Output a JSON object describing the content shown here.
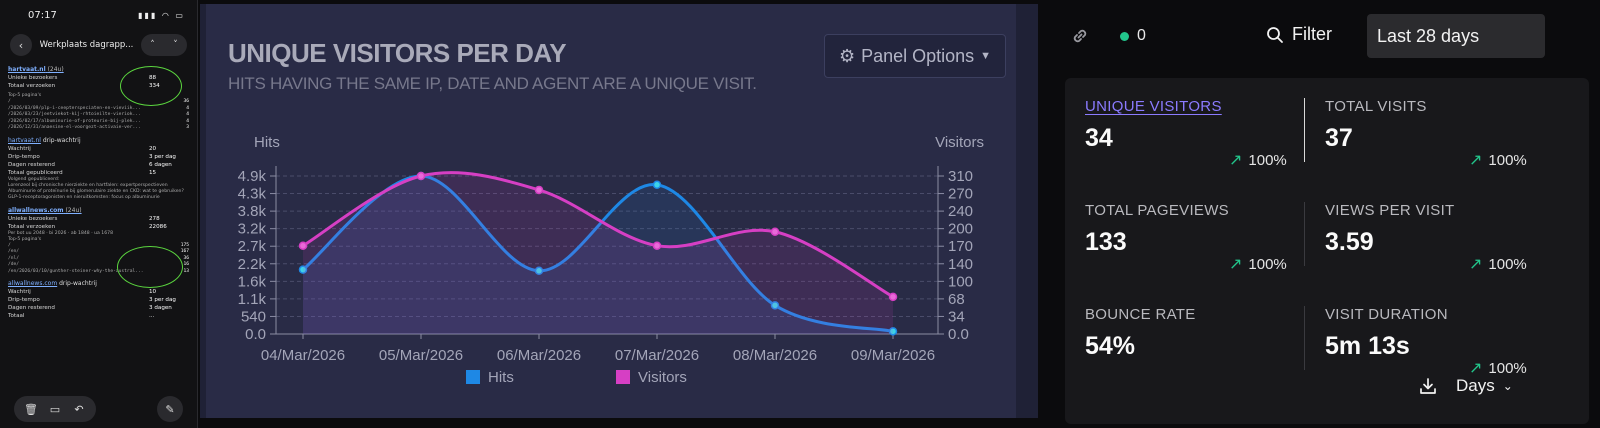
{
  "phone": {
    "time": "07:17",
    "status_icons": "▮▮▮ ◠ ▭",
    "title": "Werkplaats dagrapp...",
    "site1": {
      "name": "hartvaat.nl",
      "period": "(24u)",
      "rows": [
        {
          "label": "Unieke bezoekers",
          "value": "88"
        },
        {
          "label": "Totaal verzoeken",
          "value": "334"
        }
      ],
      "pages_head": "Top-5 pagina's",
      "pages": [
        {
          "path": "/",
          "count": "36"
        },
        {
          "path": "/2026/03/09/plp-i-ceepterspeciaten-en-vieviik...",
          "count": "4"
        },
        {
          "path": "/2026/03/23/jeetviekot-kij-rhtoieilte-vieriok...",
          "count": "4"
        },
        {
          "path": "/2026/02/17/albuminurie-of-proteurie-bij-plek...",
          "count": "4"
        },
        {
          "path": "/2026/12/31/anaesine-el-voorgezt-activaie-ver...",
          "count": "3"
        }
      ]
    },
    "drip1": {
      "name": "hartvaat.nl",
      "suffix": "drip-wachtrij",
      "rows": [
        {
          "label": "Wachtrij",
          "value": "20"
        },
        {
          "label": "Drip-tempo",
          "value": "3 per dag"
        },
        {
          "label": "Dagen resterend",
          "value": "6 dagen"
        },
        {
          "label": "Totaal gepubliceerd",
          "value": "15"
        }
      ],
      "notes_head": "Volgend gepubliceerd:",
      "notes": [
        "Lorenzeol bij chronische nierziekte en hartfalen: expertperspectieven",
        "Albuminurie of proteïnurie bij glomerulaire ziekte en CKD: wat te gebruiken?",
        "GLP-1-receptoragonisten en nieruitkomsten: focus op albuminurie"
      ]
    },
    "site2": {
      "name": "allwallnews.com",
      "period": "(24u)",
      "rows": [
        {
          "label": "Unieke bezoekers",
          "value": "278"
        },
        {
          "label": "Totaal verzoeken",
          "value": "22086"
        }
      ],
      "meta": "Per bot uu 2048 · bi 2026 · ab 1848 · ua 1678",
      "pages_head": "Top-5 pagina's",
      "pages": [
        {
          "path": "/",
          "count": "175"
        },
        {
          "path": "/en/",
          "count": "167"
        },
        {
          "path": "/nl/",
          "count": "36"
        },
        {
          "path": "/de/",
          "count": "16"
        },
        {
          "path": "/en/2026/03/10/gunther-steiner-why-the-austral...",
          "count": "13"
        }
      ]
    },
    "drip2": {
      "name": "allwallnews.com",
      "suffix": "drip-wachtrij",
      "rows": [
        {
          "label": "Wachtrij",
          "value": "10"
        },
        {
          "label": "Drip-tempo",
          "value": "3 per dag"
        },
        {
          "label": "Dagen resterend",
          "value": "3 dagen"
        },
        {
          "label": "Totaal",
          "value": "..."
        }
      ]
    }
  },
  "chart_panel": {
    "title": "UNIQUE VISITORS PER DAY",
    "subtitle": "HITS HAVING THE SAME IP, DATE AND AGENT ARE A UNIQUE VISIT.",
    "options_label": "Panel Options"
  },
  "chart_data": {
    "type": "line",
    "title": "UNIQUE VISITORS PER DAY",
    "subtitle": "HITS HAVING THE SAME IP, DATE AND AGENT ARE A UNIQUE VISIT.",
    "x": [
      "04/Mar/2026",
      "05/Mar/2026",
      "06/Mar/2026",
      "07/Mar/2026",
      "08/Mar/2026",
      "09/Mar/2026"
    ],
    "left_axis": {
      "label": "Hits",
      "ticks": [
        "0.0",
        "540",
        "1.1k",
        "1.6k",
        "2.2k",
        "2.7k",
        "3.2k",
        "3.8k",
        "4.3k",
        "4.9k"
      ],
      "ylim": [
        0,
        5400
      ]
    },
    "right_axis": {
      "label": "Visitors",
      "ticks": [
        "0.0",
        "34",
        "68",
        "100",
        "140",
        "170",
        "200",
        "240",
        "270",
        "310"
      ],
      "ylim": [
        0,
        340
      ]
    },
    "series": [
      {
        "name": "Hits",
        "axis": "left",
        "color": "#1e88e5",
        "values": [
          2200,
          5400,
          2160,
          5100,
          980,
          90
        ]
      },
      {
        "name": "Visitors",
        "axis": "right",
        "color": "#d63fc4",
        "values": [
          190,
          340,
          310,
          190,
          220,
          80
        ]
      }
    ],
    "legend": "bottom",
    "grid": true
  },
  "stats": {
    "live_count": "0",
    "filter_label": "Filter",
    "range_label": "Last 28 days",
    "items": [
      {
        "label": "UNIQUE VISITORS",
        "value": "34",
        "change": "100%"
      },
      {
        "label": "TOTAL VISITS",
        "value": "37",
        "change": "100%"
      },
      {
        "label": "TOTAL PAGEVIEWS",
        "value": "133",
        "change": "100%"
      },
      {
        "label": "VIEWS PER VISIT",
        "value": "3.59",
        "change": "100%"
      },
      {
        "label": "BOUNCE RATE",
        "value": "54%"
      },
      {
        "label": "VISIT DURATION",
        "value": "5m 13s",
        "change": "100%"
      }
    ],
    "interval_label": "Days"
  },
  "colors": {
    "accent": "#8b7bff",
    "positive": "#22c58b",
    "hits": "#1e88e5",
    "visitors": "#d63fc4"
  }
}
